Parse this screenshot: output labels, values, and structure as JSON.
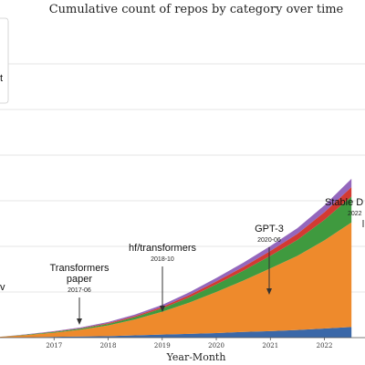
{
  "chart_data": {
    "type": "area",
    "stacked": true,
    "title": "Cumulative count of repos by category over time",
    "xlabel": "Year-Month",
    "ylabel": "",
    "x_tick_labels": [
      "2017",
      "2018",
      "2019",
      "2020",
      "2021",
      "2022"
    ],
    "x": [
      "2016-01",
      "2016-07",
      "2017-01",
      "2017-07",
      "2018-01",
      "2018-07",
      "2019-01",
      "2019-07",
      "2020-01",
      "2020-07",
      "2021-01",
      "2021-07",
      "2022-01",
      "2022-07"
    ],
    "series": [
      {
        "color": "#3b68a8",
        "values": [
          0,
          1,
          2,
          3,
          4,
          6,
          8,
          10,
          12,
          15,
          17,
          20,
          24,
          28
        ]
      },
      {
        "color": "#ee8a2c",
        "values": [
          2,
          6,
          11,
          18,
          28,
          42,
          60,
          82,
          108,
          135,
          165,
          195,
          232,
          275
        ]
      },
      {
        "color": "#3f9a3f",
        "values": [
          0,
          1,
          2,
          3,
          4,
          6,
          9,
          14,
          20,
          26,
          33,
          42,
          54,
          68
        ]
      },
      {
        "color": "#d33a32",
        "values": [
          0,
          0,
          1,
          1,
          2,
          3,
          4,
          6,
          8,
          10,
          13,
          16,
          20,
          25
        ]
      },
      {
        "color": "#9467bd",
        "values": [
          0,
          1,
          1,
          2,
          3,
          4,
          5,
          7,
          9,
          11,
          13,
          15,
          18,
          22
        ]
      }
    ],
    "annotations": [
      {
        "label": [
          "Transformers",
          "paper"
        ],
        "date": "2017-06"
      },
      {
        "label": [
          "hf/transformers"
        ],
        "date": "2018-10"
      },
      {
        "label": [
          "GPT-3"
        ],
        "date": "2020-06"
      },
      {
        "label": [
          "Stable D"
        ],
        "date": "2022"
      }
    ],
    "edge_label_fragments": [
      "t",
      "v"
    ],
    "grid": true
  }
}
